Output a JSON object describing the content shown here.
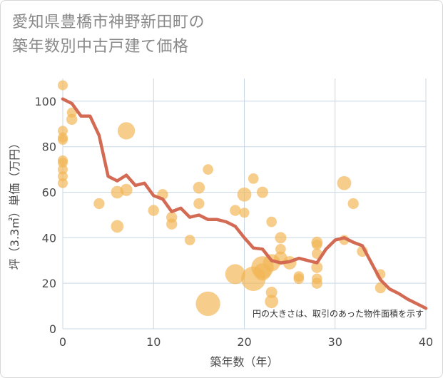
{
  "title_line1": "愛知県豊橋市神野新田町の",
  "title_line2": "築年数別中古戸建て価格",
  "chart_data": {
    "type": "scatter",
    "title": "愛知県豊橋市神野新田町の築年数別中古戸建て価格",
    "xlabel": "築年数（年）",
    "ylabel": "坪（3.3㎡）単価（万円）",
    "xlim": [
      0,
      40
    ],
    "ylim": [
      0,
      110
    ],
    "xticks": [
      0,
      10,
      20,
      30,
      40
    ],
    "yticks": [
      0,
      20,
      40,
      60,
      80,
      100
    ],
    "grid": true,
    "annotation": "円の大きさは、取引のあった物件面積を示す",
    "colors": {
      "points": "#f2b654",
      "line": "#d36a53"
    },
    "points": [
      {
        "x": 0,
        "y": 107,
        "s": 1
      },
      {
        "x": 0,
        "y": 87,
        "s": 1
      },
      {
        "x": 0,
        "y": 84,
        "s": 1
      },
      {
        "x": 0,
        "y": 83,
        "s": 1
      },
      {
        "x": 0,
        "y": 74,
        "s": 1
      },
      {
        "x": 0,
        "y": 73,
        "s": 1
      },
      {
        "x": 0,
        "y": 70,
        "s": 1
      },
      {
        "x": 0,
        "y": 67,
        "s": 1
      },
      {
        "x": 0,
        "y": 64,
        "s": 1
      },
      {
        "x": 1,
        "y": 95,
        "s": 1
      },
      {
        "x": 1,
        "y": 92,
        "s": 1.2
      },
      {
        "x": 4,
        "y": 55,
        "s": 1.2
      },
      {
        "x": 6,
        "y": 60,
        "s": 1.6
      },
      {
        "x": 6,
        "y": 45,
        "s": 1.6
      },
      {
        "x": 7,
        "y": 87,
        "s": 3
      },
      {
        "x": 7,
        "y": 61,
        "s": 1.5
      },
      {
        "x": 10,
        "y": 52,
        "s": 1.2
      },
      {
        "x": 11,
        "y": 59,
        "s": 1.2
      },
      {
        "x": 12,
        "y": 49,
        "s": 1.2
      },
      {
        "x": 12,
        "y": 46,
        "s": 1.2
      },
      {
        "x": 14,
        "y": 39,
        "s": 1.1
      },
      {
        "x": 15,
        "y": 62,
        "s": 1.4
      },
      {
        "x": 15,
        "y": 55,
        "s": 1.2
      },
      {
        "x": 16,
        "y": 70,
        "s": 1.1
      },
      {
        "x": 16,
        "y": 11,
        "s": 6
      },
      {
        "x": 19,
        "y": 52,
        "s": 1.2
      },
      {
        "x": 19,
        "y": 24,
        "s": 4
      },
      {
        "x": 20,
        "y": 59,
        "s": 2
      },
      {
        "x": 20,
        "y": 51,
        "s": 1
      },
      {
        "x": 21,
        "y": 66,
        "s": 1.1
      },
      {
        "x": 21,
        "y": 22,
        "s": 6
      },
      {
        "x": 22,
        "y": 60,
        "s": 1.3
      },
      {
        "x": 22,
        "y": 27,
        "s": 5
      },
      {
        "x": 22,
        "y": 25,
        "s": 3
      },
      {
        "x": 23,
        "y": 47,
        "s": 1.1
      },
      {
        "x": 23,
        "y": 29,
        "s": 3
      },
      {
        "x": 23,
        "y": 16,
        "s": 1.3
      },
      {
        "x": 23,
        "y": 12,
        "s": 1.8
      },
      {
        "x": 24,
        "y": 40,
        "s": 1.3
      },
      {
        "x": 24,
        "y": 35,
        "s": 1.1
      },
      {
        "x": 24,
        "y": 31,
        "s": 1.8
      },
      {
        "x": 25,
        "y": 29,
        "s": 1.8
      },
      {
        "x": 26,
        "y": 23,
        "s": 1.1
      },
      {
        "x": 26,
        "y": 22,
        "s": 1.1
      },
      {
        "x": 28,
        "y": 38,
        "s": 1.3
      },
      {
        "x": 28,
        "y": 37,
        "s": 1.1
      },
      {
        "x": 28,
        "y": 33,
        "s": 1.1
      },
      {
        "x": 28,
        "y": 27,
        "s": 1.3
      },
      {
        "x": 28,
        "y": 22,
        "s": 1.1
      },
      {
        "x": 28,
        "y": 20,
        "s": 1.2
      },
      {
        "x": 31,
        "y": 64,
        "s": 2
      },
      {
        "x": 31,
        "y": 39,
        "s": 1
      },
      {
        "x": 32,
        "y": 55,
        "s": 1.2
      },
      {
        "x": 33,
        "y": 34,
        "s": 1.2
      },
      {
        "x": 35,
        "y": 24,
        "s": 1
      },
      {
        "x": 35,
        "y": 18,
        "s": 1.2
      }
    ],
    "line": {
      "x": [
        0,
        1,
        2,
        3,
        4,
        5,
        6,
        7,
        8,
        9,
        10,
        11,
        12,
        13,
        14,
        15,
        16,
        17,
        18,
        19,
        20,
        21,
        22,
        23,
        24,
        25,
        26,
        27,
        28,
        29,
        30,
        31,
        32,
        33,
        34,
        35,
        36,
        37,
        38,
        39,
        40
      ],
      "y": [
        101,
        99,
        93.5,
        93.5,
        85,
        67,
        65,
        67.5,
        63,
        64,
        58.5,
        57,
        51.5,
        53,
        49,
        50,
        48,
        48,
        47,
        45,
        40,
        35.5,
        35,
        30,
        29,
        29.5,
        31,
        30,
        29,
        35,
        39,
        40,
        38,
        36.5,
        29,
        21.5,
        17.5,
        15.5,
        13,
        11,
        9
      ]
    }
  }
}
